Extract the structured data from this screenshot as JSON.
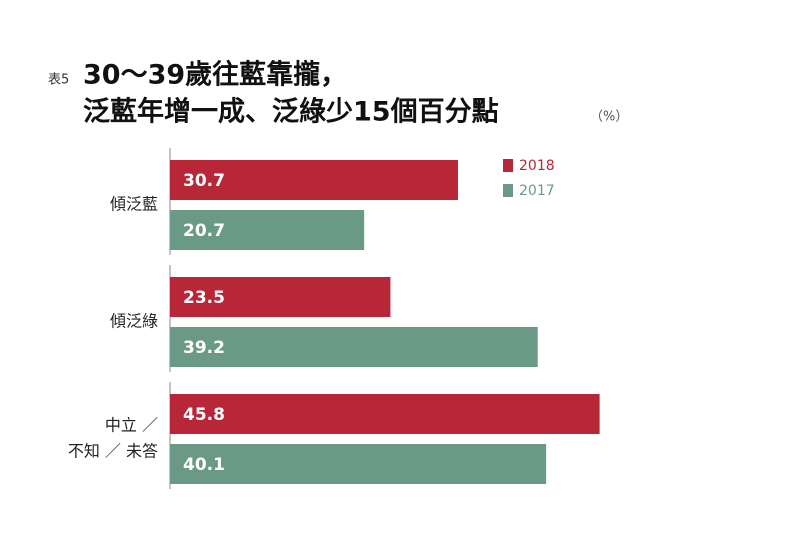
{
  "chart_data": {
    "type": "bar",
    "orientation": "horizontal",
    "prefix": "表5",
    "title": [
      "30～39歲往藍靠攏，",
      "泛藍年增一成、泛綠少15個百分點"
    ],
    "unit": "（%）",
    "categories": [
      [
        "傾泛藍"
      ],
      [
        "傾泛綠"
      ],
      [
        "中立 ／",
        "不知 ／ 未答"
      ]
    ],
    "series": [
      {
        "name": "2018",
        "color": "#b82738",
        "values": [
          30.7,
          23.5,
          45.8
        ]
      },
      {
        "name": "2017",
        "color": "#6a9a85",
        "values": [
          20.7,
          39.2,
          40.1
        ]
      }
    ],
    "xlim": [
      0,
      50
    ],
    "legend": "top-right"
  }
}
